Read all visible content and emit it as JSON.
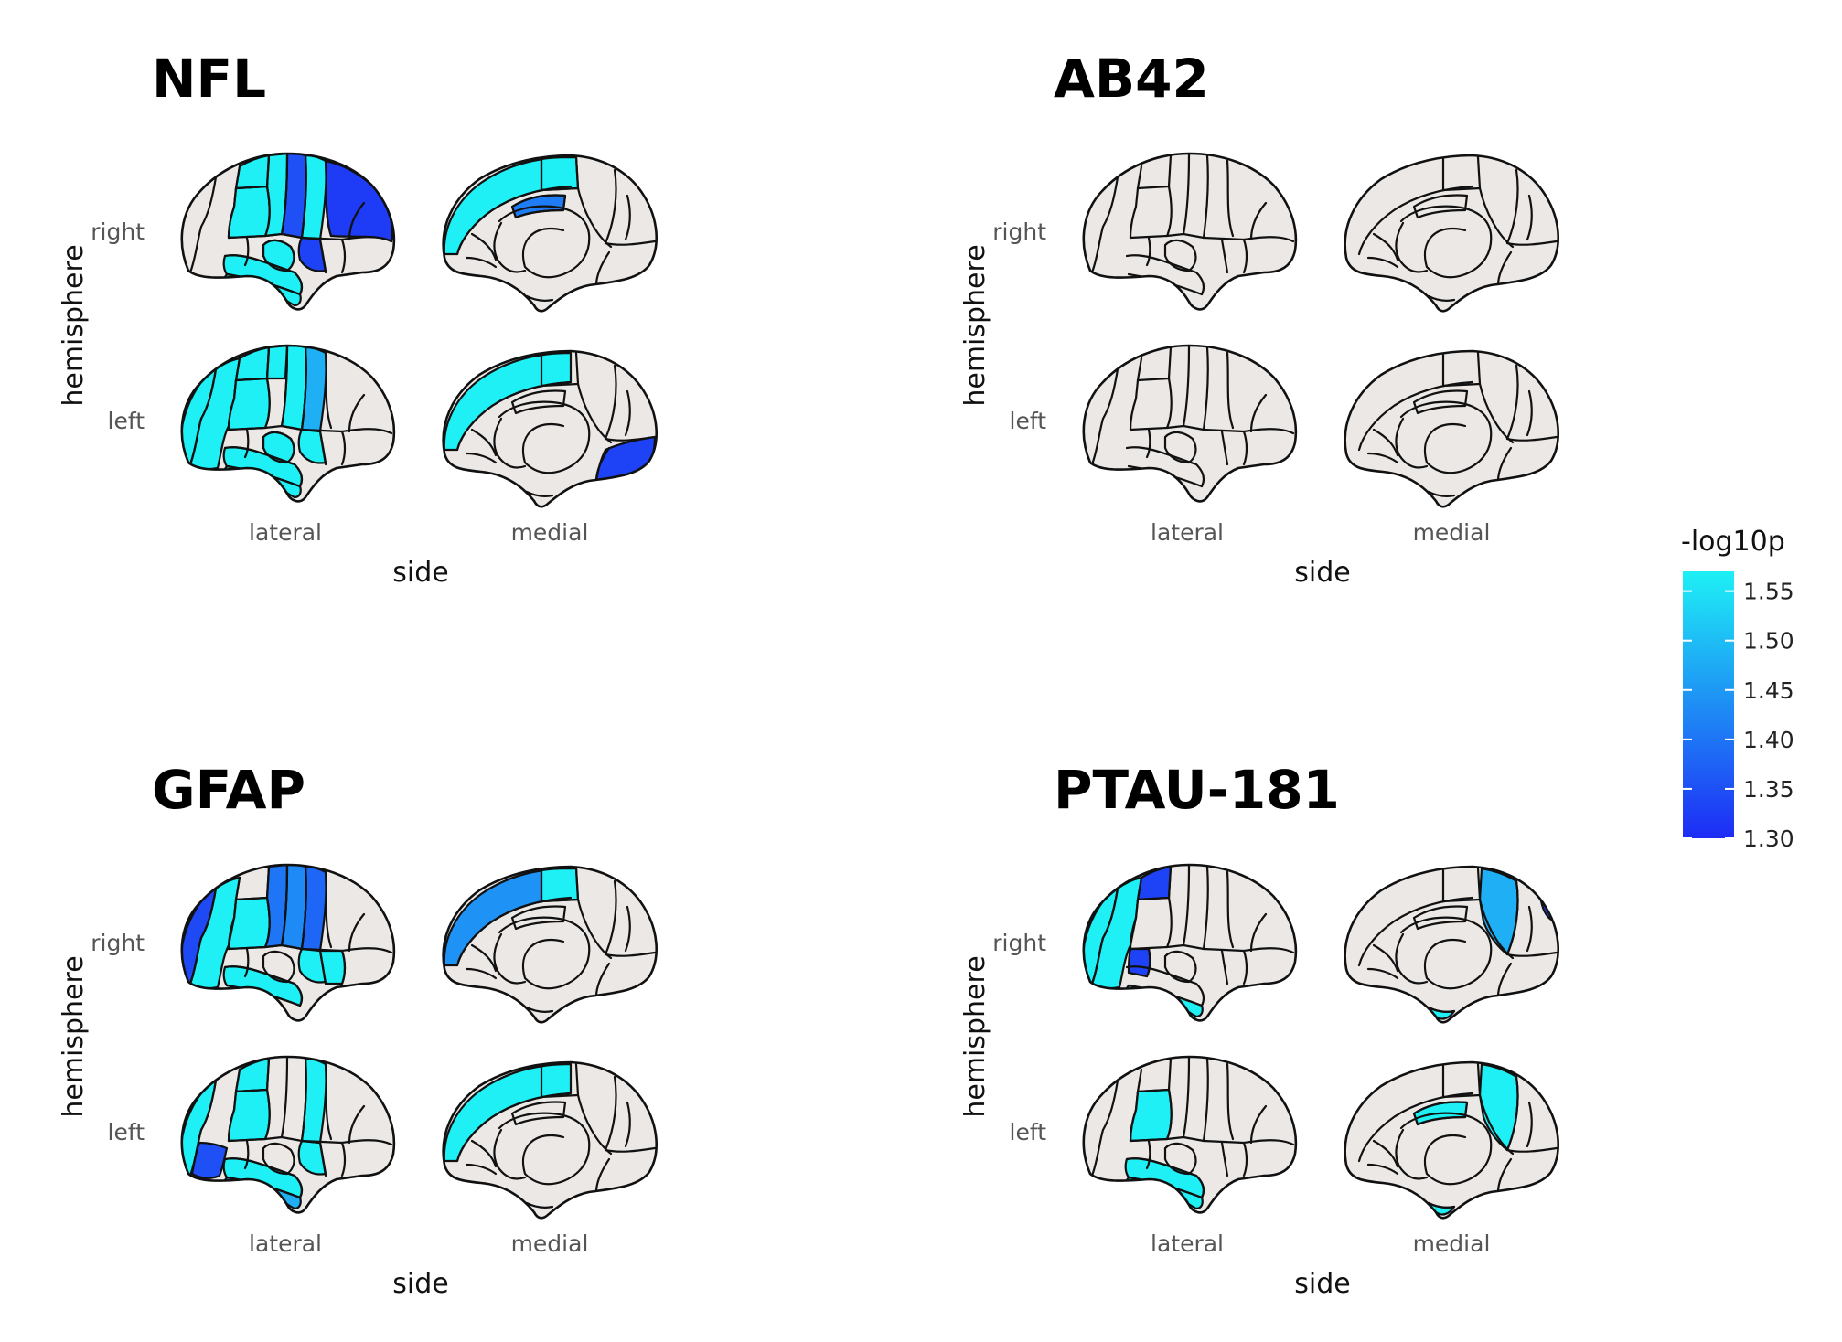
{
  "legend": {
    "title": "-log10p",
    "ticks": [
      "1.55",
      "1.50",
      "1.45",
      "1.40",
      "1.35",
      "1.30"
    ],
    "range": [
      1.3,
      1.57
    ],
    "color_low": "#1E2CF5",
    "color_high": "#1EF0F5"
  },
  "base_color": "#ECE8E6",
  "panels": [
    {
      "title": "NFL",
      "x_title": "side",
      "y_title": "hemisphere",
      "col_labels": [
        "lateral",
        "medial"
      ],
      "row_labels": [
        "right",
        "left"
      ],
      "maps": {
        "right_lateral": [
          {
            "region": "precentral",
            "value": 1.35
          },
          {
            "region": "supramarginal",
            "value": 1.57
          },
          {
            "region": "postcentral",
            "value": 1.57
          },
          {
            "region": "superior-parietal",
            "value": 1.57
          },
          {
            "region": "caudal-middle-frontal",
            "value": 1.57
          },
          {
            "region": "rostral-middle-frontal",
            "value": 1.32
          },
          {
            "region": "pars-opercularis",
            "value": 1.33
          },
          {
            "region": "insula",
            "value": 1.57
          },
          {
            "region": "superior-temporal",
            "value": 1.57
          },
          {
            "region": "middle-temporal",
            "value": 1.57
          }
        ],
        "right_medial": [
          {
            "region": "superior-frontal-medial",
            "value": 1.57
          },
          {
            "region": "paracentral",
            "value": 1.57
          },
          {
            "region": "posterior-cingulate",
            "value": 1.41
          }
        ],
        "left_lateral": [
          {
            "region": "lateral-occipital",
            "value": 1.57
          },
          {
            "region": "inferior-parietal",
            "value": 1.57
          },
          {
            "region": "superior-parietal",
            "value": 1.57
          },
          {
            "region": "supramarginal",
            "value": 1.57
          },
          {
            "region": "precentral",
            "value": 1.57
          },
          {
            "region": "postcentral-upper",
            "value": 1.57
          },
          {
            "region": "caudal-middle-frontal",
            "value": 1.48
          },
          {
            "region": "pars-opercularis",
            "value": 1.57
          },
          {
            "region": "insula",
            "value": 1.57
          },
          {
            "region": "superior-temporal",
            "value": 1.57
          },
          {
            "region": "middle-temporal",
            "value": 1.57
          }
        ],
        "left_medial": [
          {
            "region": "superior-frontal-medial",
            "value": 1.57
          },
          {
            "region": "medial-orbitofrontal",
            "value": 1.33
          }
        ]
      }
    },
    {
      "title": "AB42",
      "x_title": "side",
      "y_title": "hemisphere",
      "col_labels": [
        "lateral",
        "medial"
      ],
      "row_labels": [
        "right",
        "left"
      ],
      "maps": {
        "right_lateral": [],
        "right_medial": [],
        "left_lateral": [],
        "left_medial": []
      }
    },
    {
      "title": "GFAP",
      "x_title": "side",
      "y_title": "hemisphere",
      "col_labels": [
        "lateral",
        "medial"
      ],
      "row_labels": [
        "right",
        "left"
      ],
      "maps": {
        "right_lateral": [
          {
            "region": "lateral-occipital",
            "value": 1.34
          },
          {
            "region": "supramarginal",
            "value": 1.57
          },
          {
            "region": "inferior-parietal",
            "value": 1.57
          },
          {
            "region": "postcentral",
            "value": 1.4
          },
          {
            "region": "precentral",
            "value": 1.43
          },
          {
            "region": "caudal-middle-frontal",
            "value": 1.38
          },
          {
            "region": "pars-opercularis",
            "value": 1.57
          },
          {
            "region": "pars-triangularis",
            "value": 1.57
          },
          {
            "region": "superior-temporal",
            "value": 1.57
          }
        ],
        "right_medial": [
          {
            "region": "superior-frontal-medial",
            "value": 1.44
          },
          {
            "region": "paracentral",
            "value": 1.57
          }
        ],
        "left_lateral": [
          {
            "region": "lateral-occipital",
            "value": 1.57
          },
          {
            "region": "inferior-parietal-low",
            "value": 1.35
          },
          {
            "region": "superior-parietal",
            "value": 1.57
          },
          {
            "region": "supramarginal",
            "value": 1.57
          },
          {
            "region": "pars-opercularis",
            "value": 1.57
          },
          {
            "region": "caudal-middle-frontal",
            "value": 1.57
          },
          {
            "region": "superior-temporal",
            "value": 1.57
          },
          {
            "region": "middle-temporal",
            "value": 1.48
          }
        ],
        "left_medial": [
          {
            "region": "superior-frontal-medial",
            "value": 1.57
          }
        ]
      }
    },
    {
      "title": "PTAU-181",
      "x_title": "side",
      "y_title": "hemisphere",
      "col_labels": [
        "lateral",
        "medial"
      ],
      "row_labels": [
        "right",
        "left"
      ],
      "maps": {
        "right_lateral": [
          {
            "region": "superior-parietal",
            "value": 1.33
          },
          {
            "region": "lateral-occipital",
            "value": 1.57
          },
          {
            "region": "inferior-parietal",
            "value": 1.57
          },
          {
            "region": "bankssts",
            "value": 1.33
          },
          {
            "region": "middle-temporal",
            "value": 1.57
          },
          {
            "region": "inferior-temporal",
            "value": 1.57
          }
        ],
        "right_medial": [
          {
            "region": "precuneus",
            "value": 1.48
          },
          {
            "region": "cuneus-edge",
            "value": 1.33
          },
          {
            "region": "parahippocampal",
            "value": 1.57
          }
        ],
        "left_lateral": [
          {
            "region": "supramarginal",
            "value": 1.57
          },
          {
            "region": "superior-temporal",
            "value": 1.57
          },
          {
            "region": "middle-temporal",
            "value": 1.57
          }
        ],
        "left_medial": [
          {
            "region": "precuneus",
            "value": 1.57
          },
          {
            "region": "posterior-cingulate",
            "value": 1.57
          },
          {
            "region": "parahippocampal",
            "value": 1.57
          }
        ]
      }
    }
  ]
}
